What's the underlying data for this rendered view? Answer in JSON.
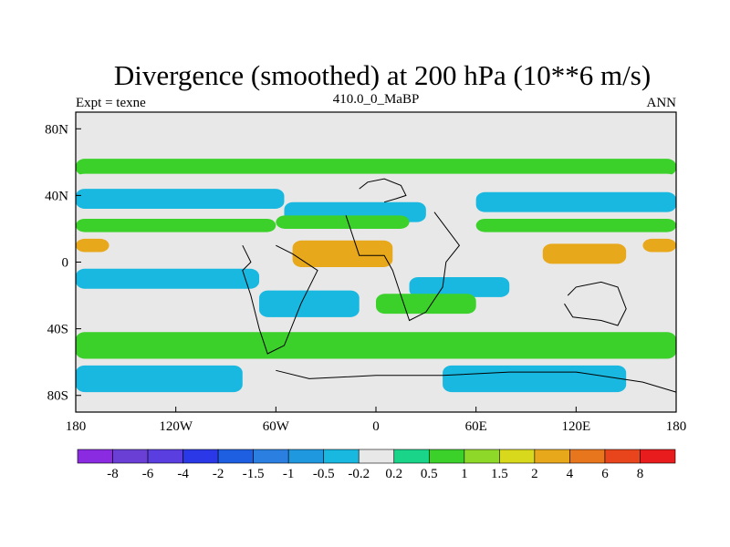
{
  "chart_data": {
    "type": "heatmap",
    "title": "Divergence (smoothed) at 200 hPa (10**6 m/s)",
    "left_label": "Expt = texne",
    "center_label": "410.0_0_MaBP",
    "right_label": "ANN",
    "x_range": [
      -180,
      180
    ],
    "y_range": [
      -90,
      90
    ],
    "x_ticks": [
      {
        "value": -180,
        "label": "180"
      },
      {
        "value": -120,
        "label": "120W"
      },
      {
        "value": -60,
        "label": "60W"
      },
      {
        "value": 0,
        "label": "0"
      },
      {
        "value": 60,
        "label": "60E"
      },
      {
        "value": 120,
        "label": "120E"
      },
      {
        "value": 180,
        "label": "180"
      }
    ],
    "y_ticks": [
      {
        "value": 80,
        "label": "80N"
      },
      {
        "value": 40,
        "label": "40N"
      },
      {
        "value": 0,
        "label": "0"
      },
      {
        "value": -40,
        "label": "40S"
      },
      {
        "value": -80,
        "label": "80S"
      }
    ],
    "colorbar": {
      "labels": [
        "-8",
        "-6",
        "-4",
        "-2",
        "-1.5",
        "-1",
        "-0.5",
        "-0.2",
        "0.2",
        "0.5",
        "1",
        "1.5",
        "2",
        "4",
        "6",
        "8"
      ],
      "colors": [
        "#8a2be2",
        "#6a3fd6",
        "#5a3ee0",
        "#2a38e8",
        "#1e5ee0",
        "#2a7fe0",
        "#1f98e0",
        "#18b8e0",
        "#e8e8e8",
        "#1ad48a",
        "#3bd12a",
        "#8ed82a",
        "#d8d81c",
        "#e8a81c",
        "#e8761c",
        "#e8451c",
        "#e81c1c"
      ]
    },
    "bands": [
      {
        "lat": 57,
        "half_width": 5,
        "class": 1,
        "lon_start": -180,
        "lon_end": 180
      },
      {
        "lat": 50,
        "half_width": 3,
        "class": 0,
        "lon_start": -180,
        "lon_end": 180
      },
      {
        "lat": 38,
        "half_width": 6,
        "class": -2,
        "lon_start": -180,
        "lon_end": -55
      },
      {
        "lat": 30,
        "half_width": 6,
        "class": -2,
        "lon_start": -55,
        "lon_end": 30
      },
      {
        "lat": 36,
        "half_width": 6,
        "class": -2,
        "lon_start": 60,
        "lon_end": 180
      },
      {
        "lat": 22,
        "half_width": 4,
        "class": 1,
        "lon_start": -180,
        "lon_end": -60
      },
      {
        "lat": 24,
        "half_width": 4,
        "class": 1,
        "lon_start": -60,
        "lon_end": 20
      },
      {
        "lat": 22,
        "half_width": 4,
        "class": 1,
        "lon_start": 60,
        "lon_end": 180
      },
      {
        "lat": 10,
        "half_width": 4,
        "class": 2,
        "lon_start": -180,
        "lon_end": -160
      },
      {
        "lat": 5,
        "half_width": 8,
        "class": 2,
        "lon_start": -50,
        "lon_end": 10
      },
      {
        "lat": 5,
        "half_width": 6,
        "class": 2,
        "lon_start": 100,
        "lon_end": 150
      },
      {
        "lat": 10,
        "half_width": 4,
        "class": 2,
        "lon_start": 160,
        "lon_end": 180
      },
      {
        "lat": -10,
        "half_width": 6,
        "class": -2,
        "lon_start": -180,
        "lon_end": -70
      },
      {
        "lat": -25,
        "half_width": 8,
        "class": -2,
        "lon_start": -70,
        "lon_end": -10
      },
      {
        "lat": -15,
        "half_width": 6,
        "class": -2,
        "lon_start": 20,
        "lon_end": 80
      },
      {
        "lat": -25,
        "half_width": 6,
        "class": 1,
        "lon_start": 0,
        "lon_end": 60
      },
      {
        "lat": -50,
        "half_width": 8,
        "class": 1,
        "lon_start": -180,
        "lon_end": 180
      },
      {
        "lat": -70,
        "half_width": 8,
        "class": -2,
        "lon_start": -180,
        "lon_end": -80
      },
      {
        "lat": -70,
        "half_width": 8,
        "class": -2,
        "lon_start": 40,
        "lon_end": 150
      }
    ]
  }
}
